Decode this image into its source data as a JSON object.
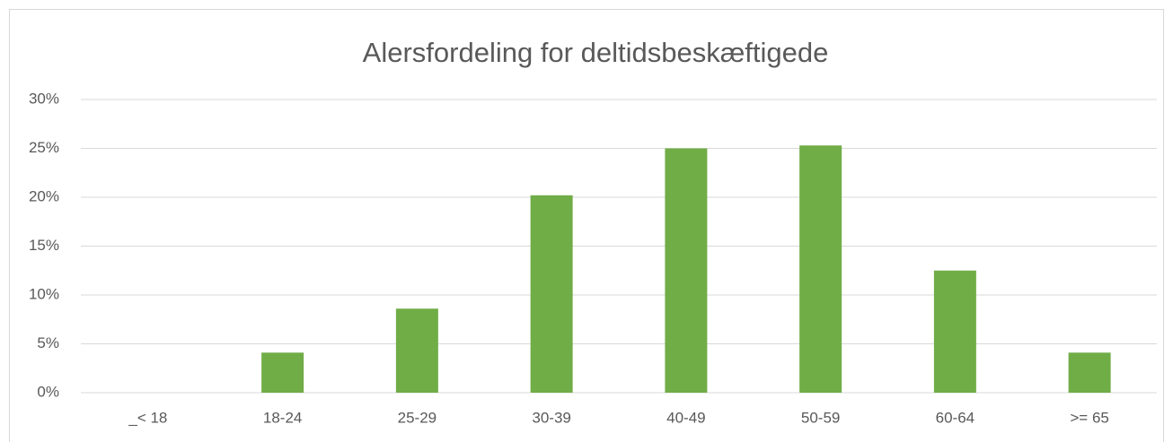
{
  "chart_data": {
    "type": "bar",
    "title": "Alersfordeling for deltidsbeskæftigede",
    "categories": [
      "_< 18",
      "18-24",
      "25-29",
      "30-39",
      "40-49",
      "50-59",
      "60-64",
      ">= 65"
    ],
    "values": [
      0,
      4.1,
      8.6,
      20.2,
      25.0,
      25.3,
      12.5,
      4.1
    ],
    "color": "#70ad47",
    "ylim": [
      0,
      30
    ],
    "yticks": [
      {
        "value": 0,
        "label": "0%"
      },
      {
        "value": 5,
        "label": "5%"
      },
      {
        "value": 10,
        "label": "10%"
      },
      {
        "value": 15,
        "label": "15%"
      },
      {
        "value": 20,
        "label": "20%"
      },
      {
        "value": 25,
        "label": "25%"
      },
      {
        "value": 30,
        "label": "30%"
      }
    ],
    "grid": true
  }
}
